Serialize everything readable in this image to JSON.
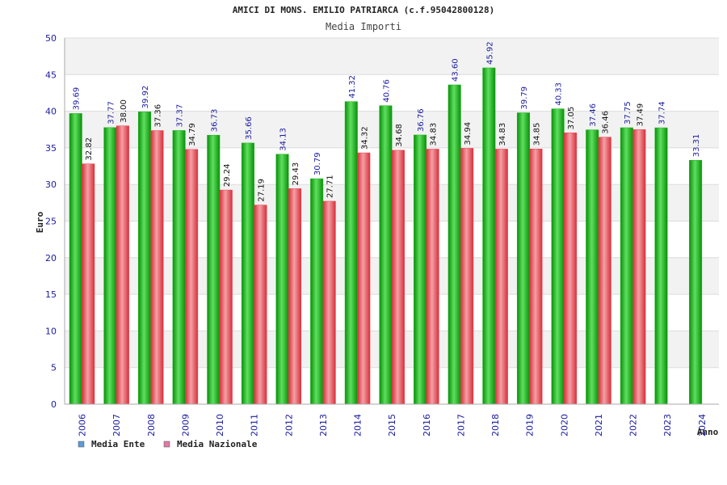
{
  "chart_data": {
    "type": "bar",
    "title": "AMICI DI MONS. EMILIO PATRIARCA (c.f.95042800128)",
    "subtitle": "Media Importi",
    "xlabel": "Anno",
    "ylabel": "Euro",
    "ylim": [
      0,
      50
    ],
    "yticks": [
      "0",
      "5",
      "10",
      "15",
      "20",
      "25",
      "30",
      "35",
      "40",
      "45",
      "50"
    ],
    "grid": true,
    "legend_position": "bottom-left",
    "categories": [
      "2006",
      "2007",
      "2008",
      "2009",
      "2010",
      "2011",
      "2012",
      "2013",
      "2014",
      "2015",
      "2016",
      "2017",
      "2018",
      "2019",
      "2020",
      "2021",
      "2022",
      "2023",
      "2024"
    ],
    "series": [
      {
        "name": "Media Ente",
        "color": "#1fb31f",
        "label_color": "#1a1aa0",
        "legend_color": "#5b9bd5",
        "values": [
          39.69,
          37.77,
          39.92,
          37.37,
          36.73,
          35.66,
          34.13,
          30.79,
          41.32,
          40.76,
          36.76,
          43.6,
          45.92,
          39.79,
          40.33,
          37.46,
          37.75,
          37.74,
          33.31
        ],
        "labels": [
          "39.69",
          "37.77",
          "39.92",
          "37.37",
          "36.73",
          "35.66",
          "34.13",
          "30.79",
          "41.32",
          "40.76",
          "36.76",
          "43.60",
          "45.92",
          "39.79",
          "40.33",
          "37.46",
          "37.75",
          "37.74",
          "33.31"
        ]
      },
      {
        "name": "Media Nazionale",
        "color": "#e8404a",
        "label_color": "#111111",
        "legend_color": "#e07aa6",
        "values": [
          32.82,
          38.0,
          37.36,
          34.79,
          29.24,
          27.19,
          29.43,
          27.71,
          34.32,
          34.68,
          34.83,
          34.94,
          34.83,
          34.85,
          37.05,
          36.46,
          37.49,
          null,
          null
        ],
        "labels": [
          "32.82",
          "38.00",
          "37.36",
          "34.79",
          "29.24",
          "27.19",
          "29.43",
          "27.71",
          "34.32",
          "34.68",
          "34.83",
          "34.94",
          "34.83",
          "34.85",
          "37.05",
          "36.46",
          "37.49",
          "",
          ""
        ]
      }
    ]
  }
}
